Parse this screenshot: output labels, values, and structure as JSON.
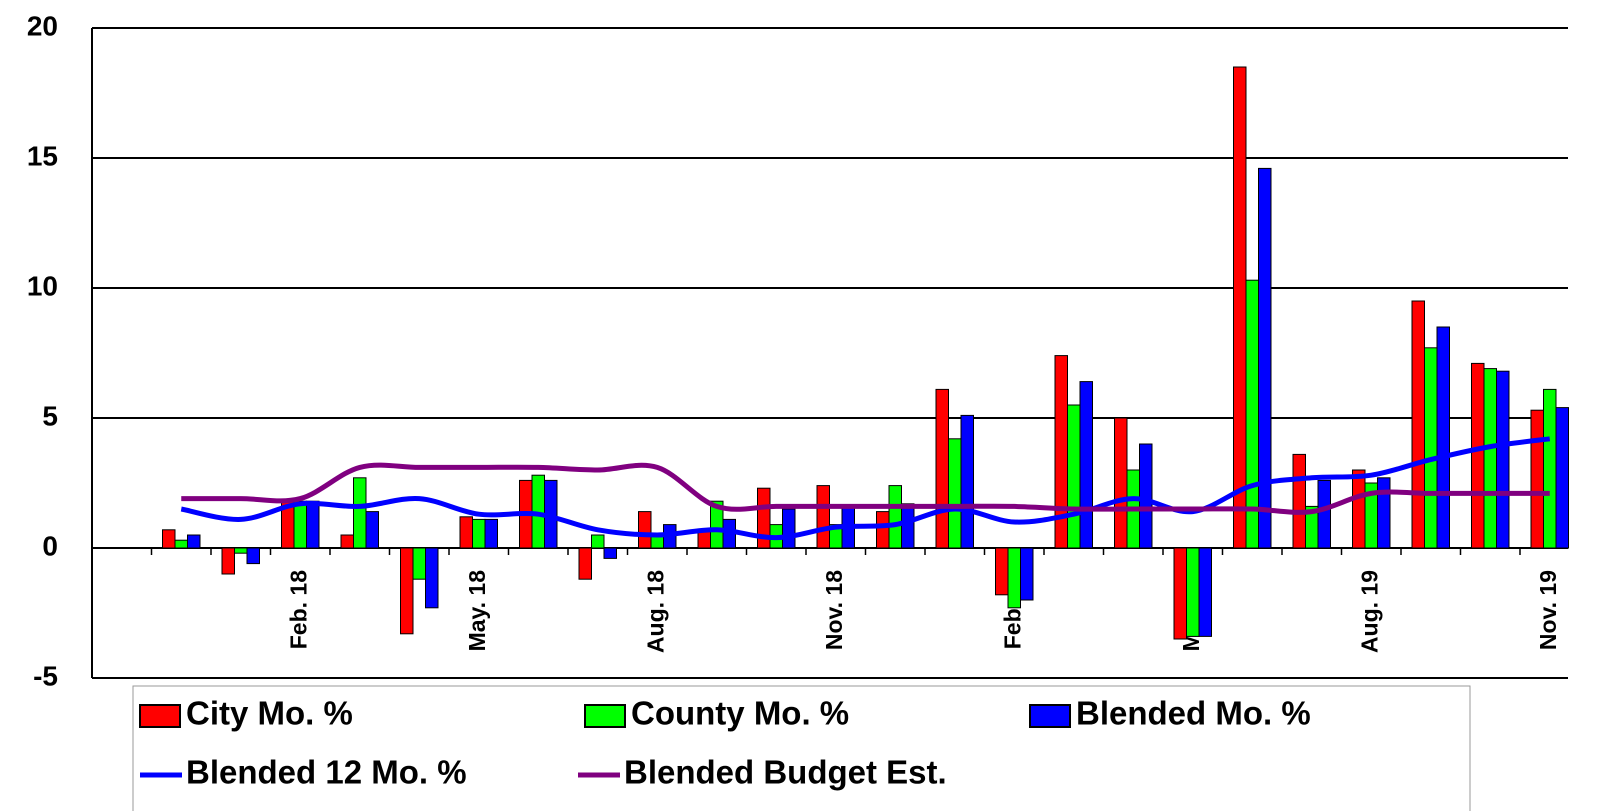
{
  "chart_data": {
    "type": "bar",
    "categories": [
      null,
      null,
      null,
      "Feb. 18",
      null,
      null,
      "May. 18",
      null,
      null,
      "Aug. 18",
      null,
      null,
      "Nov. 18",
      null,
      null,
      "Feb. 19",
      null,
      null,
      "May. 19",
      null,
      null,
      "Aug. 19",
      null,
      null,
      "Nov. 19"
    ],
    "series": [
      {
        "name": "City Mo. %",
        "type": "bar",
        "color": "#ff0000",
        "values": [
          null,
          0.7,
          -1.0,
          1.8,
          0.5,
          -3.3,
          1.2,
          2.6,
          -1.2,
          1.4,
          0.7,
          2.3,
          2.4,
          1.4,
          6.1,
          -1.8,
          7.4,
          5.0,
          -3.5,
          18.5,
          3.6,
          3.0,
          9.5,
          7.1,
          5.3
        ]
      },
      {
        "name": "County Mo. %",
        "type": "bar",
        "color": "#00ff00",
        "values": [
          null,
          0.3,
          -0.2,
          1.8,
          2.7,
          -1.2,
          1.1,
          2.8,
          0.5,
          0.5,
          1.8,
          0.9,
          0.9,
          2.4,
          4.2,
          -2.3,
          5.5,
          3.0,
          -3.4,
          10.3,
          1.6,
          2.5,
          7.7,
          6.9,
          6.1
        ]
      },
      {
        "name": "Blended Mo. %",
        "type": "bar",
        "color": "#0000ff",
        "values": [
          null,
          0.5,
          -0.6,
          1.8,
          1.4,
          -2.3,
          1.1,
          2.6,
          -0.4,
          0.9,
          1.1,
          1.5,
          1.6,
          1.7,
          5.1,
          -2.0,
          6.4,
          4.0,
          -3.4,
          14.6,
          2.6,
          2.7,
          8.5,
          6.8,
          5.4
        ]
      },
      {
        "name": "Blended 12 Mo. %",
        "type": "line",
        "color": "#0000ff",
        "values": [
          null,
          1.5,
          1.1,
          1.7,
          1.6,
          1.9,
          1.3,
          1.3,
          0.7,
          0.5,
          0.7,
          0.4,
          0.8,
          0.9,
          1.5,
          1.0,
          1.3,
          1.9,
          1.4,
          2.4,
          2.7,
          2.8,
          3.4,
          3.9,
          4.2
        ]
      },
      {
        "name": "Blended Budget Est.",
        "type": "line",
        "color": "#800080",
        "values": [
          null,
          1.9,
          1.9,
          1.9,
          3.1,
          3.1,
          3.1,
          3.1,
          3.0,
          3.1,
          1.6,
          1.6,
          1.6,
          1.6,
          1.6,
          1.6,
          1.5,
          1.5,
          1.5,
          1.5,
          1.4,
          2.1,
          2.1,
          2.1,
          2.1
        ]
      }
    ],
    "ylim": [
      -5,
      20
    ],
    "yticks": [
      -5,
      0,
      5,
      10,
      15,
      20
    ],
    "grid": true
  }
}
